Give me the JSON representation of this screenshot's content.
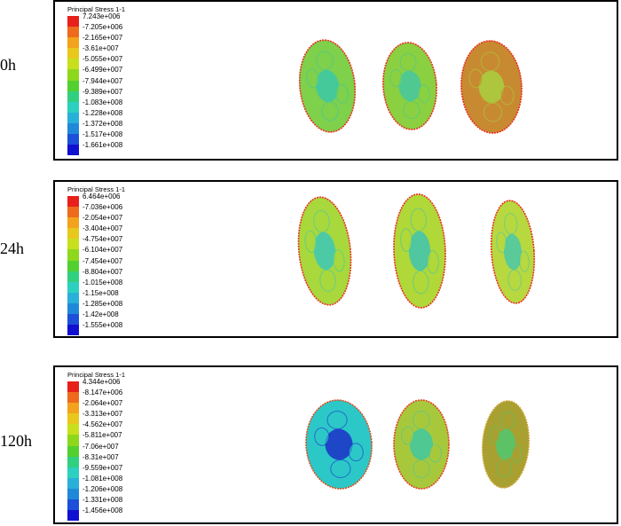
{
  "legend_colors": [
    "#e8201c",
    "#ee6a1c",
    "#f2a21c",
    "#e8c81c",
    "#c8e01c",
    "#8ed81c",
    "#52d030",
    "#30d080",
    "#2cd0c0",
    "#28b0d8",
    "#2088d8",
    "#1c50d8",
    "#1010d0"
  ],
  "panels": [
    {
      "row_label": "0h",
      "legend_title": "Principal Stress 1-1",
      "legend_values": [
        "7.243e+006",
        "-7.205e+006",
        "-2.165e+007",
        "-3.61e+007",
        "-5.055e+007",
        "-6.499e+007",
        "-7.944e+007",
        "-9.389e+007",
        "-1.083e+008",
        "-1.228e+008",
        "-1.372e+008",
        "-1.517e+008",
        "-1.661e+008"
      ],
      "shapes": [
        {
          "base": "#7fd04a",
          "spot": "#3cc8a8",
          "rim": "#e8301c"
        },
        {
          "base": "#8ad040",
          "spot": "#44c8a0",
          "rim": "#e8301c"
        },
        {
          "base": "#c88a30",
          "spot": "#a8d040",
          "rim": "#e8301c"
        }
      ]
    },
    {
      "row_label": "24h",
      "legend_title": "Principal Stress 1-1",
      "legend_values": [
        "6.464e+006",
        "-7.036e+006",
        "-2.054e+007",
        "-3.404e+007",
        "-4.754e+007",
        "-6.104e+007",
        "-7.454e+007",
        "-8.804e+007",
        "-1.015e+008",
        "-1.15e+008",
        "-1.285e+008",
        "-1.42e+008",
        "-1.555e+008"
      ],
      "shapes": [
        {
          "base": "#a8d83c",
          "spot": "#3cc8b8",
          "rim": "#e8301c"
        },
        {
          "base": "#b0d838",
          "spot": "#40c4b0",
          "rim": "#e8301c"
        },
        {
          "base": "#b8d840",
          "spot": "#48c8a8",
          "rim": "#e8301c"
        }
      ]
    },
    {
      "row_label": "120h",
      "legend_title": "Principal Stress 1-1",
      "legend_values": [
        "4.344e+006",
        "-8.147e+006",
        "-2.064e+007",
        "-3.313e+007",
        "-4.562e+007",
        "-5.811e+007",
        "-7.06e+007",
        "-8.31e+007",
        "-9.559e+007",
        "-1.081e+008",
        "-1.206e+008",
        "-1.331e+008",
        "-1.456e+008"
      ],
      "shapes": [
        {
          "base": "#2cc8c8",
          "spot": "#1c30c8",
          "rim": "#d8501c"
        },
        {
          "base": "#a8c83c",
          "spot": "#40c8a0",
          "rim": "#e0401c"
        },
        {
          "base": "#a8a030",
          "spot": "#50c870",
          "rim": "#c8a030"
        }
      ]
    }
  ]
}
